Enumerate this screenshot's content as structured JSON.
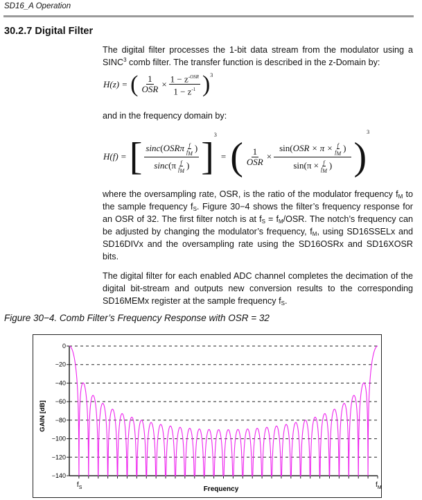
{
  "header": {
    "title": "SD16_A Operation"
  },
  "section": {
    "title": "30.2.7 Digital Filter"
  },
  "paragraphs": {
    "p1_a": "The digital filter processes the 1-bit data stream from the modulator using a SINC",
    "p1_sup": "3",
    "p1_b": " comb filter. The transfer function is described in the z-Domain by:",
    "p2": "and in the frequency domain by:",
    "p3_a": "where the oversampling rate, OSR, is the ratio of the modulator frequency f",
    "p3_b": " to the sample frequency f",
    "p3_c": ". Figure 30−4 shows the filter’s frequency response for an OSR of 32. The first filter notch is at f",
    "p3_d": " = f",
    "p3_e": "/OSR. The notch’s frequency can be adjusted by changing the modulator’s frequency, f",
    "p3_f": ", using SD16SSELx and SD16DIVx and the oversampling rate using the SD16OSRx and SD16XOSR bits.",
    "p4_a": "The digital filter for each enabled ADC channel completes the decimation of the digital bit-stream and outputs new conversion results to the corresponding SD16MEMx register at the sample frequency f",
    "p4_b": ".",
    "sub_M": "M",
    "sub_S": "S"
  },
  "equations": {
    "hz_lhs": "H(z) =",
    "one": "1",
    "osr": "OSR",
    "times": "×",
    "hz_num": "1 − z",
    "hz_num_exp": "-OSR",
    "hz_den": "1 − z",
    "hz_den_exp": "-1",
    "cube": "3",
    "hf_lhs": "H(f) =",
    "eq": "=",
    "sinc_num": "sinc",
    "osrpi": "OSRπ",
    "sinc_den": "sinc",
    "pi": "π",
    "f": "f",
    "fM": "f",
    "M": "M",
    "sin_num": "sin",
    "osr_pi": "OSR × π ×",
    "sin_den": "sin",
    "pi_x": "π ×"
  },
  "figure": {
    "caption": "Figure 30−4. Comb Filter’s Frequency Response with OSR = 32"
  },
  "chart_data": {
    "type": "line",
    "ylabel": "GAIN [dB]",
    "xlabel": "Frequency",
    "ylim": [
      -140,
      0
    ],
    "yticks": [
      0,
      -20,
      -40,
      -60,
      -80,
      -100,
      -120,
      -140
    ],
    "x_tick_labels": [
      {
        "label": "f",
        "sub": "S",
        "at_fraction_of_fM": 0.03125
      },
      {
        "label": "f",
        "sub": "M",
        "at_fraction_of_fM": 1
      }
    ],
    "osr": 32,
    "function": "20*log10(|sin(OSR*pi*f/fM)/(OSR*sin(pi*f/fM))|^3)",
    "grid": "horizontal dashed",
    "line_color": "#ee22ee"
  }
}
